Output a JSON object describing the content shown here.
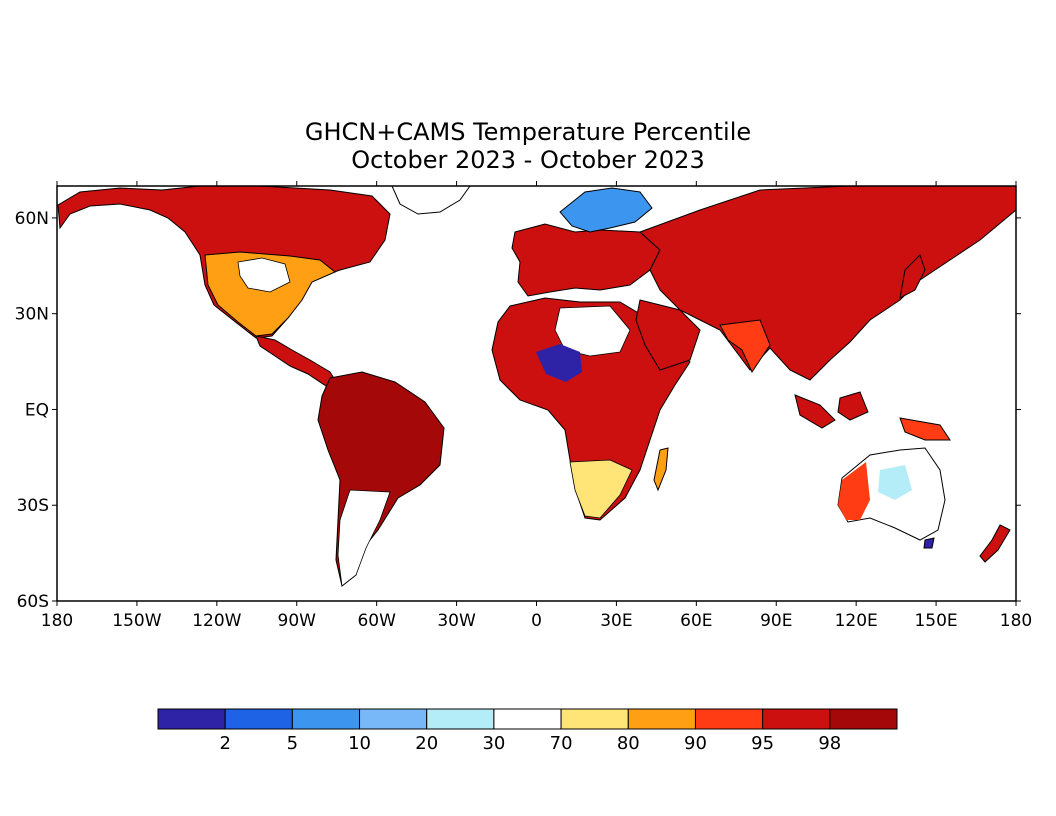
{
  "title": {
    "line1": "GHCN+CAMS Temperature Percentile",
    "line2": "October 2023 - October 2023"
  },
  "map": {
    "lat_ticks": [
      "60N",
      "30N",
      "EQ",
      "30S",
      "60S"
    ],
    "lon_ticks": [
      "180",
      "150W",
      "120W",
      "90W",
      "60W",
      "30W",
      "0",
      "30E",
      "60E",
      "90E",
      "120E",
      "150E",
      "180"
    ],
    "lon_range": [
      -180,
      180
    ],
    "lat_range": [
      -60,
      70
    ]
  },
  "legend": {
    "colors": [
      "#2e22a6",
      "#1e62e6",
      "#3c96f0",
      "#78b8f8",
      "#b4ecf8",
      "#ffffff",
      "#ffe478",
      "#ffa014",
      "#ff3c14",
      "#cc0f0f",
      "#a50808"
    ],
    "labels": [
      "2",
      "5",
      "10",
      "20",
      "30",
      "70",
      "80",
      "90",
      "95",
      "98"
    ]
  }
}
